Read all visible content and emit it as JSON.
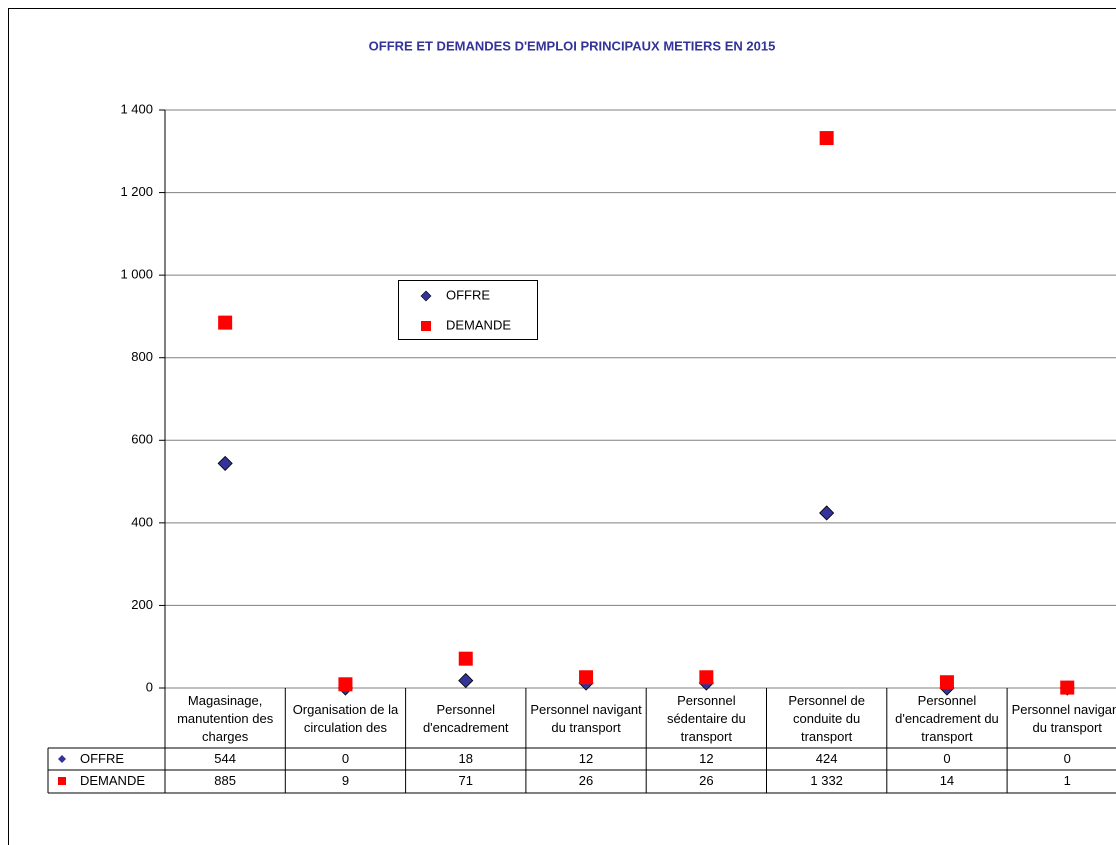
{
  "chart_data": {
    "type": "scatter",
    "title": "OFFRE ET DEMANDES D'EMPLOI PRINCIPAUX METIERS EN 2015",
    "categories": [
      "Magasinage, manutention des charges",
      "Organisation de la circulation des",
      "Personnel d'encadrement",
      "Personnel navigant du transport",
      "Personnel sédentaire du transport",
      "Personnel de conduite du transport",
      "Personnel d'encadrement du transport",
      "Personnel navigant du transport"
    ],
    "series": [
      {
        "name": "OFFRE",
        "color": "#333399",
        "values": [
          544,
          0,
          18,
          12,
          12,
          424,
          0,
          0
        ],
        "value_labels": [
          "544",
          "0",
          "18",
          "12",
          "12",
          "424",
          "0",
          "0"
        ]
      },
      {
        "name": "DEMANDE",
        "color": "#ff0000",
        "values": [
          885,
          9,
          71,
          26,
          26,
          1332,
          14,
          1
        ],
        "value_labels": [
          "885",
          "9",
          "71",
          "26",
          "26",
          "1 332",
          "14",
          "1"
        ]
      }
    ],
    "ylim": [
      0,
      1400
    ],
    "yticks": [
      0,
      200,
      400,
      600,
      800,
      {
        "value": 1000,
        "label": "1 000"
      },
      {
        "value": 1200,
        "label": "1 200"
      },
      {
        "value": 1400,
        "label": "1 400"
      }
    ],
    "grid": true
  }
}
